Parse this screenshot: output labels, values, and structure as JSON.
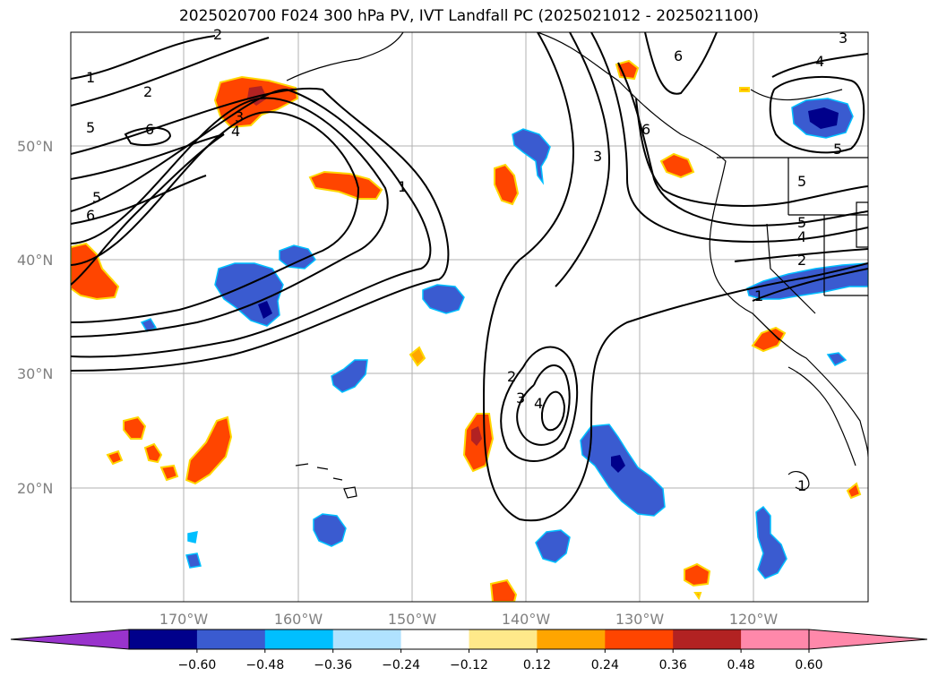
{
  "title": "2025020700 F024 300 hPa PV, IVT Landfall PC (2025021012 - 2025021100)",
  "map": {
    "lat_labels": [
      "50°N",
      "40°N",
      "30°N",
      "20°N"
    ],
    "lon_labels": [
      "170°W",
      "160°W",
      "150°W",
      "140°W",
      "130°W",
      "120°W"
    ],
    "contour_label_values": [
      "1",
      "2",
      "3",
      "4",
      "5",
      "6"
    ]
  },
  "colorbar": {
    "ticks": [
      "−0.60",
      "−0.48",
      "−0.36",
      "−0.24",
      "−0.12",
      "0.12",
      "0.24",
      "0.36",
      "0.48",
      "0.60"
    ],
    "colors": {
      "under": "#9933cc",
      "bins": [
        "#00008b",
        "#3a5bd0",
        "#00bfff",
        "#b0e2ff",
        "#ffffff",
        "#ffe98a",
        "#ffa500",
        "#ff4500",
        "#b22222",
        "#ff88aa"
      ],
      "over": "#ff88aa"
    }
  },
  "colors": {
    "grid": "#b0b0b0",
    "coast": "#000000",
    "contour": "#000000"
  }
}
